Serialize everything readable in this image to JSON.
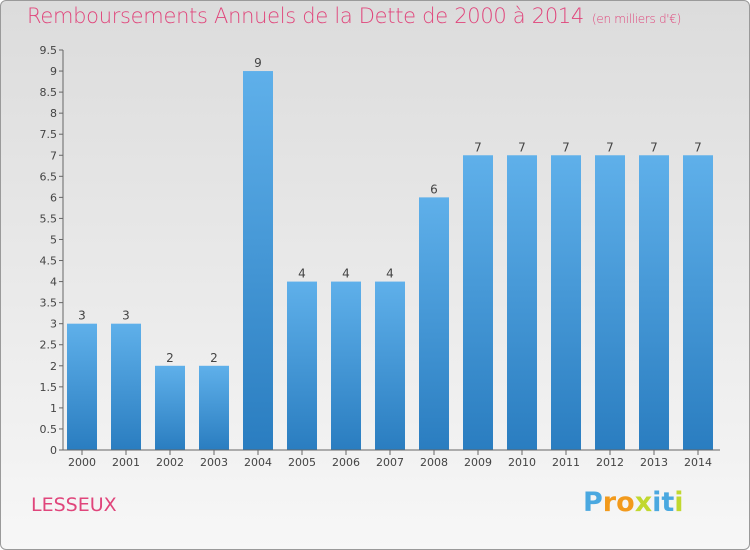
{
  "chart_data": {
    "type": "bar",
    "title": "Remboursements Annuels de la Dette de 2000 à 2014",
    "subtitle": "(en milliers d'€)",
    "categories": [
      "2000",
      "2001",
      "2002",
      "2003",
      "2004",
      "2005",
      "2006",
      "2007",
      "2008",
      "2009",
      "2010",
      "2011",
      "2012",
      "2013",
      "2014"
    ],
    "values": [
      3,
      3,
      2,
      2,
      9,
      4,
      4,
      4,
      6,
      7,
      7,
      7,
      7,
      7,
      7
    ],
    "ylim": [
      0,
      9.5
    ],
    "yticks": [
      "0",
      "0.5",
      "1",
      "1.5",
      "2",
      "2.5",
      "3",
      "3.5",
      "4",
      "4.5",
      "5",
      "5.5",
      "6",
      "6.5",
      "7",
      "7.5",
      "8",
      "8.5",
      "9",
      "9.5"
    ],
    "grid": false,
    "colors": {
      "bar_light": "#5fb0ea",
      "bar_dark": "#2a7dc0",
      "text": "#e0457b"
    }
  },
  "place_name": "LESSEUX",
  "logo": {
    "text": "Proxiti",
    "letter_colors": [
      "#4aa8e0",
      "#f29a1c",
      "#f29a1c",
      "#c1d82f",
      "#4aa8e0",
      "#4aa8e0",
      "#c1d82f"
    ]
  }
}
